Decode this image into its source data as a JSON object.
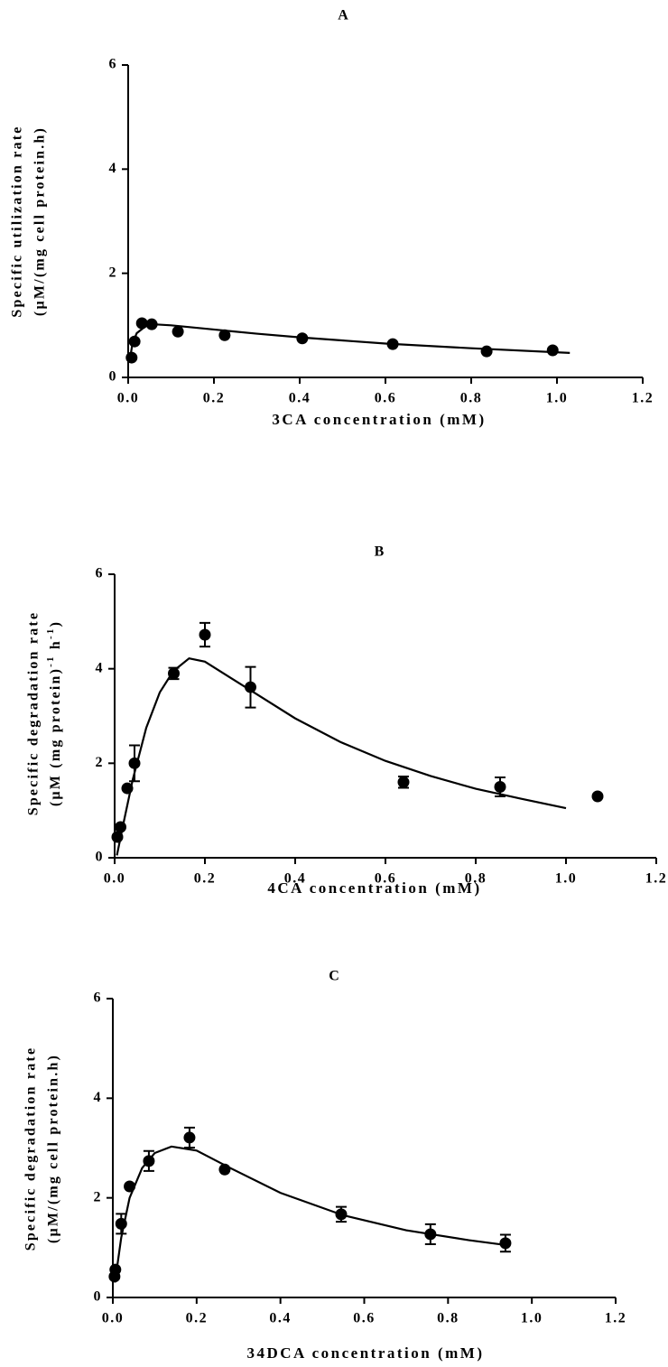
{
  "chart_data": [
    {
      "type": "scatter",
      "title": "A",
      "xlabel": "3CA concentration (mM)",
      "ylabel": [
        "Specific utilization rate",
        "(µM/(mg cell protein.h)"
      ],
      "xlim": [
        0,
        1.2
      ],
      "ylim": [
        0,
        6
      ],
      "xticks": [
        {
          "value": 0,
          "label": "0.0"
        },
        0.2,
        0.4,
        0.6,
        0.8,
        {
          "value": 1,
          "label": "1.0"
        },
        1.2
      ],
      "yticks": [
        0,
        2,
        4,
        6
      ],
      "series": [
        {
          "color": "#000000",
          "x": [
            0.008,
            0.015,
            0.032,
            0.055,
            0.116,
            0.225,
            0.406,
            0.617,
            0.836,
            0.99
          ],
          "values": [
            0.38,
            0.69,
            1.04,
            1.02,
            0.88,
            0.81,
            0.75,
            0.64,
            0.5,
            0.52
          ]
        },
        {
          "type": "line",
          "color": "#000000",
          "x": [
            0.003,
            0.01,
            0.02,
            0.04,
            0.06,
            0.1,
            0.2,
            0.3,
            0.4,
            0.6,
            0.8,
            1.03
          ],
          "values": [
            0.3,
            0.65,
            0.85,
            0.98,
            1.02,
            1.0,
            0.92,
            0.84,
            0.77,
            0.65,
            0.56,
            0.47
          ]
        }
      ]
    },
    {
      "type": "scatter",
      "title": "B",
      "xlabel": "4CA concentration (mM)",
      "ylabel": [
        "Specific degradation  rate",
        [
          "(µM  (mg protein)",
          "-1",
          " h",
          "-1",
          ")"
        ]
      ],
      "xlim": [
        0,
        1.2
      ],
      "ylim": [
        0,
        6
      ],
      "xticks": [
        {
          "value": 0,
          "label": "0.0"
        },
        0.2,
        0.4,
        0.6,
        0.8,
        {
          "value": 1,
          "label": "1.0"
        },
        1.2
      ],
      "yticks": [
        0,
        2,
        4,
        6
      ],
      "series": [
        {
          "color": "#000000",
          "x": [
            0.006,
            0.013,
            0.028,
            0.044,
            0.131,
            0.2,
            0.301,
            0.64,
            0.854,
            1.07
          ],
          "values": [
            0.44,
            0.65,
            1.47,
            2.0,
            3.9,
            4.72,
            3.61,
            1.6,
            1.5,
            1.3
          ],
          "errors": [
            null,
            null,
            null,
            0.38,
            0.12,
            0.25,
            0.43,
            0.12,
            0.2,
            null
          ]
        },
        {
          "type": "line",
          "color": "#000000",
          "x": [
            0.005,
            0.02,
            0.04,
            0.07,
            0.1,
            0.13,
            0.165,
            0.2,
            0.3,
            0.4,
            0.5,
            0.6,
            0.7,
            0.8,
            0.9,
            1.0
          ],
          "values": [
            0.05,
            0.75,
            1.65,
            2.75,
            3.5,
            3.95,
            4.22,
            4.15,
            3.55,
            2.95,
            2.45,
            2.05,
            1.73,
            1.46,
            1.25,
            1.05
          ]
        }
      ]
    },
    {
      "type": "scatter",
      "title": "C",
      "xlabel": "34DCA concentration (mM)",
      "ylabel": [
        "Specific degradation rate",
        "(µM/(mg cell protein.h)"
      ],
      "xlim": [
        0,
        1.2
      ],
      "ylim": [
        0,
        6
      ],
      "xticks": [
        {
          "value": 0,
          "label": "0.0"
        },
        0.2,
        0.4,
        0.6,
        0.8,
        {
          "value": 1,
          "label": "1.0"
        },
        1.2
      ],
      "yticks": [
        0,
        2,
        4,
        6
      ],
      "series": [
        {
          "color": "#000000",
          "x": [
            0.004,
            0.006,
            0.02,
            0.04,
            0.086,
            0.183,
            0.267,
            0.545,
            0.758,
            0.937
          ],
          "values": [
            0.42,
            0.56,
            1.48,
            2.23,
            2.74,
            3.21,
            2.57,
            1.67,
            1.27,
            1.09
          ],
          "errors": [
            null,
            null,
            0.2,
            null,
            0.2,
            0.2,
            null,
            0.15,
            0.2,
            0.17
          ]
        },
        {
          "type": "line",
          "color": "#000000",
          "x": [
            0.005,
            0.02,
            0.04,
            0.07,
            0.1,
            0.14,
            0.2,
            0.28,
            0.4,
            0.55,
            0.7,
            0.85,
            0.94
          ],
          "values": [
            0.3,
            1.2,
            2.0,
            2.6,
            2.9,
            3.03,
            2.95,
            2.6,
            2.1,
            1.65,
            1.35,
            1.15,
            1.05
          ]
        }
      ]
    }
  ]
}
